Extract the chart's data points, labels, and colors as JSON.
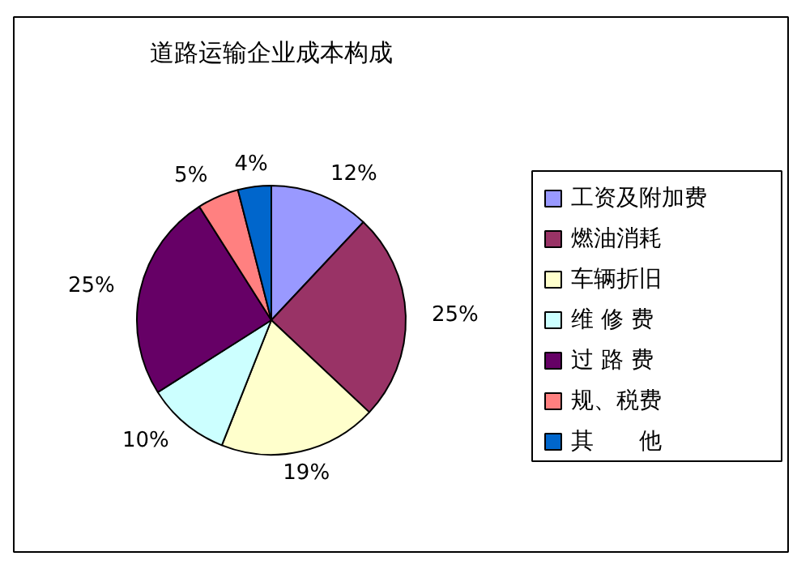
{
  "chart_data": {
    "type": "pie",
    "title": "道路运输企业成本构成",
    "categories": [
      "工资及附加费",
      "燃油消耗",
      "车辆折旧",
      "维 修 费",
      "过 路 费",
      "规、税费",
      "其　　他"
    ],
    "values": [
      12,
      25,
      19,
      10,
      25,
      5,
      4
    ],
    "colors": [
      "#9999ff",
      "#993366",
      "#ffffcc",
      "#ccffff",
      "#660066",
      "#ff8080",
      "#0066cc"
    ],
    "value_labels": [
      "12%",
      "25%",
      "19%",
      "10%",
      "25%",
      "5%",
      "4%"
    ],
    "legend": "right"
  }
}
